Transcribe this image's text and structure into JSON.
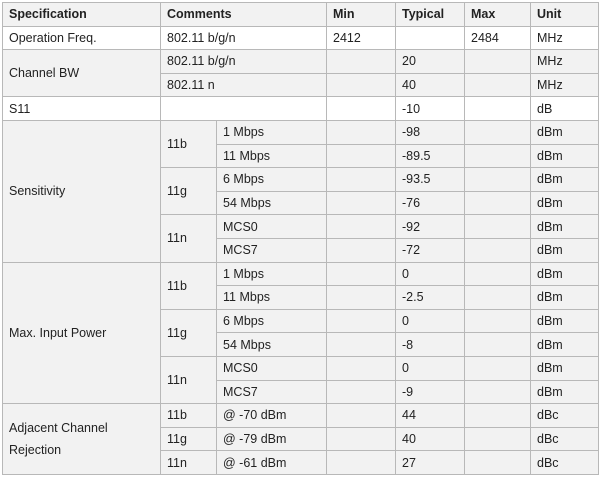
{
  "headers": [
    "Specification",
    "Comments",
    "Min",
    "Typical",
    "Max",
    "Unit"
  ],
  "operation": {
    "spec": "Operation Freq.",
    "comment": "802.11 b/g/n",
    "min": "2412",
    "max": "2484",
    "unit": "MHz"
  },
  "channel_bw": {
    "spec": "Channel BW",
    "rows": [
      {
        "comment": "802.11 b/g/n",
        "typical": "20",
        "unit": "MHz"
      },
      {
        "comment": "802.11 n",
        "typical": "40",
        "unit": "MHz"
      }
    ]
  },
  "s11": {
    "spec": "S11",
    "typical": "-10",
    "unit": "dB"
  },
  "sensitivity": {
    "spec": "Sensitivity",
    "groups": [
      {
        "mode": "11b",
        "rows": [
          {
            "rate": "1 Mbps",
            "typical": "-98",
            "unit": "dBm"
          },
          {
            "rate": "11 Mbps",
            "typical": "-89.5",
            "unit": "dBm"
          }
        ]
      },
      {
        "mode": "11g",
        "rows": [
          {
            "rate": "6 Mbps",
            "typical": "-93.5",
            "unit": "dBm"
          },
          {
            "rate": "54 Mbps",
            "typical": "-76",
            "unit": "dBm"
          }
        ]
      },
      {
        "mode": "11n",
        "rows": [
          {
            "rate": "MCS0",
            "typical": "-92",
            "unit": "dBm"
          },
          {
            "rate": "MCS7",
            "typical": "-72",
            "unit": "dBm"
          }
        ]
      }
    ]
  },
  "max_input": {
    "spec": "Max. Input Power",
    "groups": [
      {
        "mode": "11b",
        "rows": [
          {
            "rate": "1 Mbps",
            "typical": "0",
            "unit": "dBm"
          },
          {
            "rate": "11 Mbps",
            "typical": "-2.5",
            "unit": "dBm"
          }
        ]
      },
      {
        "mode": "11g",
        "rows": [
          {
            "rate": "6 Mbps",
            "typical": "0",
            "unit": "dBm"
          },
          {
            "rate": "54 Mbps",
            "typical": "-8",
            "unit": "dBm"
          }
        ]
      },
      {
        "mode": "11n",
        "rows": [
          {
            "rate": "MCS0",
            "typical": "0",
            "unit": "dBm"
          },
          {
            "rate": "MCS7",
            "typical": "-9",
            "unit": "dBm"
          }
        ]
      }
    ]
  },
  "adjacent": {
    "spec_line1": "Adjacent Channel",
    "spec_line2": "Rejection",
    "rows": [
      {
        "mode": "11b",
        "condition": "@ -70 dBm",
        "typical": "44",
        "unit": "dBc"
      },
      {
        "mode": "11g",
        "condition": "@ -79 dBm",
        "typical": "40",
        "unit": "dBc"
      },
      {
        "mode": "11n",
        "condition": "@ -61 dBm",
        "typical": "27",
        "unit": "dBc"
      }
    ]
  },
  "colors": {
    "shade": "#f2f2f2",
    "border": "#b8b8b8"
  }
}
